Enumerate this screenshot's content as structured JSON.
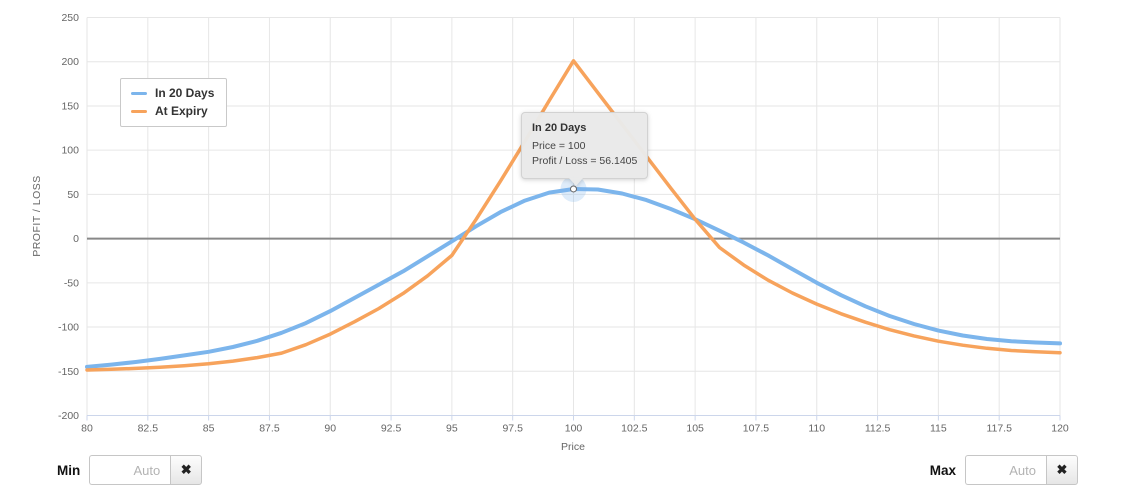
{
  "chart_data": {
    "type": "line",
    "title": "",
    "xlabel": "Price",
    "ylabel": "PROFIT / LOSS",
    "xlim": [
      80,
      120
    ],
    "ylim": [
      -200,
      250
    ],
    "xticks": [
      80,
      82.5,
      85,
      87.5,
      90,
      92.5,
      95,
      97.5,
      100,
      102.5,
      105,
      107.5,
      110,
      112.5,
      115,
      117.5,
      120
    ],
    "yticks": [
      250,
      200,
      150,
      100,
      50,
      0,
      -50,
      -100,
      -150,
      -200
    ],
    "grid": true,
    "legend_position": "top-left",
    "grid_color": "#e6e6e6",
    "zero_line_color": "#888888",
    "axis_line_color": "#ccd6eb",
    "tick_label_color": "#666666",
    "x": [
      80,
      81,
      82,
      83,
      84,
      85,
      86,
      87,
      88,
      89,
      90,
      91,
      92,
      93,
      94,
      95,
      96,
      97,
      98,
      99,
      100,
      101,
      102,
      103,
      104,
      105,
      106,
      107,
      108,
      109,
      110,
      111,
      112,
      113,
      114,
      115,
      116,
      117,
      118,
      119,
      120
    ],
    "series": [
      {
        "name": "In 20 Days",
        "color": "#7cb5ec",
        "line_width": 4,
        "values": [
          -145,
          -142.5,
          -139.5,
          -136,
          -132,
          -128,
          -122.5,
          -115.5,
          -106.5,
          -95.5,
          -82,
          -67,
          -52,
          -37,
          -20,
          -3,
          14,
          30,
          43,
          52,
          56.14,
          55.5,
          51,
          43.5,
          33.5,
          22,
          9,
          -4.5,
          -19,
          -34.5,
          -50,
          -64,
          -76.5,
          -87.5,
          -96.5,
          -104,
          -109.5,
          -113.5,
          -116,
          -117.5,
          -118.5
        ]
      },
      {
        "name": "At Expiry",
        "color": "#f7a35c",
        "line_width": 3.5,
        "values": [
          -148.5,
          -147.8,
          -146.8,
          -145.5,
          -143.8,
          -141.5,
          -138.5,
          -134.5,
          -129.5,
          -120,
          -108,
          -94,
          -79,
          -62,
          -42,
          -19,
          22,
          65,
          110,
          156,
          201,
          165,
          129,
          93,
          57,
          22,
          -10,
          -30,
          -47,
          -61.5,
          -74,
          -85,
          -94.5,
          -103,
          -110,
          -116,
          -120.5,
          -124,
          -126.5,
          -128,
          -129
        ]
      }
    ],
    "hover_point": {
      "series": "In 20 Days",
      "x": 100,
      "y": 56.1405
    }
  },
  "legend": {
    "items": [
      {
        "label": "In 20 Days",
        "color": "#7cb5ec"
      },
      {
        "label": "At Expiry",
        "color": "#f7a35c"
      }
    ]
  },
  "tooltip": {
    "title": "In 20 Days",
    "line1": "Price = 100",
    "line2": "Profit / Loss = 56.1405"
  },
  "controls": {
    "min_label": "Min",
    "max_label": "Max",
    "min_placeholder": "Auto",
    "max_placeholder": "Auto",
    "min_value": "",
    "max_value": "",
    "clear_icon": "✖"
  }
}
